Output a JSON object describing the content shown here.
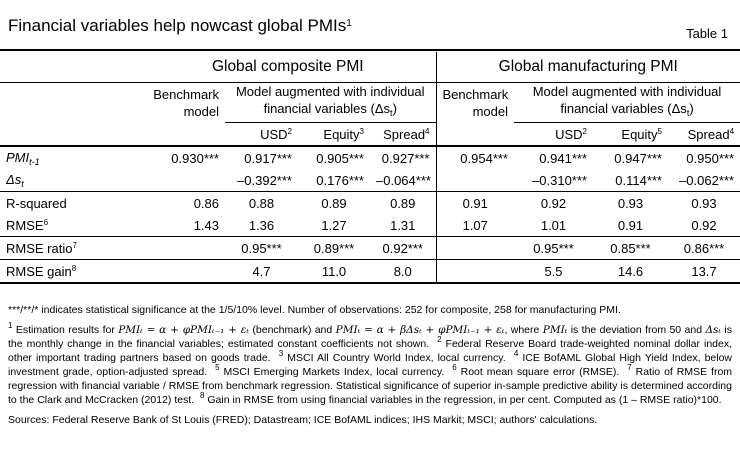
{
  "header": {
    "title": "Financial variables help nowcast global PMIs",
    "title_sup": "1",
    "table_no": "Table 1"
  },
  "groups": {
    "composite": "Global composite PMI",
    "manufacturing": "Global manufacturing PMI"
  },
  "subheaders": {
    "benchmark_l1": "Benchmark",
    "benchmark_l2": "model",
    "augmented_l1": "Model augmented with individual",
    "augmented_l2": "financial variables (Δs",
    "augmented_sub": "t",
    "augmented_close": ")"
  },
  "cols": {
    "usd": "USD",
    "usd_sup": "2",
    "equity": "Equity",
    "equity_sup_c": "3",
    "equity_sup_m": "5",
    "spread": "Spread",
    "spread_sup": "4"
  },
  "rows": {
    "pmi": {
      "label": "PMI",
      "label_sub": "t-1",
      "values": [
        "0.930***",
        "0.917***",
        "0.905***",
        "0.927***",
        "0.954***",
        "0.941***",
        "0.947***",
        "0.950***"
      ]
    },
    "ds": {
      "label": "Δs",
      "label_sub": "t",
      "values": [
        "",
        "–0.392***",
        "0.176***",
        "–0.064***",
        "",
        "–0.310***",
        "0.114***",
        "–0.062***"
      ]
    },
    "rsq": {
      "label": "R-squared",
      "values": [
        "0.86",
        "0.88",
        "0.89",
        "0.89",
        "0.91",
        "0.92",
        "0.93",
        "0.93"
      ]
    },
    "rmse": {
      "label": "RMSE",
      "label_sup": "6",
      "values": [
        "1.43",
        "1.36",
        "1.27",
        "1.31",
        "1.07",
        "1.01",
        "0.91",
        "0.92"
      ]
    },
    "ratio": {
      "label": "RMSE ratio",
      "label_sup": "7",
      "values": [
        "",
        "0.95***",
        "0.89***",
        "0.92***",
        "",
        "0.95***",
        "0.85***",
        "0.86***"
      ]
    },
    "gain": {
      "label": "RMSE gain",
      "label_sup": "8",
      "values": [
        "",
        "4.7",
        "11.0",
        "8.0",
        "",
        "5.5",
        "14.6",
        "13.7"
      ]
    }
  },
  "notes": {
    "signif": "***/**/* indicates statistical significance at the 1/5/10% level. Number of observations: 252 for composite, 258 for manufacturing PMI.",
    "n1_num": "1",
    "n1_a": "Estimation results for",
    "eq1": "PMIₜ = α + φPMIₜ₋₁ + εₜ",
    "n1_b": "(benchmark) and",
    "eq2": "PMIₜ = α + βΔsₜ + φPMIₜ₋₁ + εₜ",
    "n1_c": ", where",
    "eq3": "PMIₜ",
    "n1_d": "is the deviation from 50 and",
    "eq4": "Δsₜ",
    "n1_e": "is the monthly change in the financial variables; estimated constant coefficients not shown.",
    "n2_num": "2",
    "n2": "Federal Reserve Board trade-weighted nominal dollar index, other important trading partners based on goods trade.",
    "n3_num": "3",
    "n3": "MSCI All Country World Index, local currency.",
    "n4_num": "4",
    "n4": "ICE BofAML Global High Yield Index, below investment grade, option-adjusted spread.",
    "n5_num": "5",
    "n5": "MSCI Emerging Markets Index, local currency.",
    "n6_num": "6",
    "n6": "Root mean square error (RMSE).",
    "n7_num": "7",
    "n7": "Ratio of RMSE from regression with financial variable / RMSE from benchmark regression. Statistical significance of superior in-sample predictive ability is determined according to the Clark and McCracken (2012) test.",
    "n8_num": "8",
    "n8": "Gain in RMSE from using financial variables in the regression, in per cent. Computed as (1 – RMSE ratio)*100.",
    "sources": "Sources: Federal Reserve Bank of St Louis (FRED); Datastream; ICE BofAML indices; IHS Markit; MSCI; authors' calculations."
  }
}
